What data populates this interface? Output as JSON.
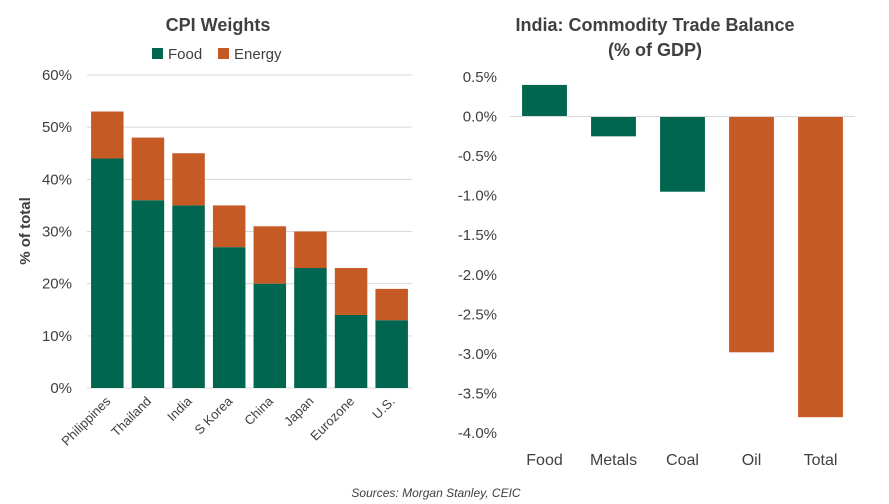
{
  "source": "Sources: Morgan Stanley, CEIC",
  "colors": {
    "food": "#006650",
    "energy": "#C55A24",
    "text": "#404040",
    "grid": "#D9D9D9"
  },
  "chart_data": [
    {
      "type": "bar",
      "stacked": true,
      "title": "CPI Weights",
      "ylabel": "% of total",
      "xlabel": "",
      "ylim": [
        0,
        60
      ],
      "ytick_values": [
        0,
        10,
        20,
        30,
        40,
        50,
        60
      ],
      "ytick_labels": [
        "0%",
        "10%",
        "20%",
        "30%",
        "40%",
        "50%",
        "60%"
      ],
      "grid": true,
      "legend": "top-center",
      "categories": [
        "Philippines",
        "Thailand",
        "India",
        "S Korea",
        "China",
        "Japan",
        "Eurozone",
        "U.S."
      ],
      "series": [
        {
          "name": "Food",
          "color": "#006650",
          "values": [
            44,
            36,
            35,
            27,
            20,
            23,
            14,
            13
          ]
        },
        {
          "name": "Energy",
          "color": "#C55A24",
          "values": [
            9,
            12,
            10,
            8,
            11,
            7,
            9,
            6
          ]
        }
      ]
    },
    {
      "type": "bar",
      "title": "India: Commodity Trade Balance",
      "subtitle": "(% of GDP)",
      "xlabel": "",
      "ylabel": "",
      "ylim": [
        -4.0,
        0.5
      ],
      "ytick_values": [
        0.5,
        0.0,
        -0.5,
        -1.0,
        -1.5,
        -2.0,
        -2.5,
        -3.0,
        -3.5,
        -4.0
      ],
      "ytick_labels": [
        "0.5%",
        "0.0%",
        "-0.5%",
        "-1.0%",
        "-1.5%",
        "-2.0%",
        "-2.5%",
        "-3.0%",
        "-3.5%",
        "-4.0%"
      ],
      "grid": false,
      "categories": [
        "Food",
        "Metals",
        "Coal",
        "Oil",
        "Total"
      ],
      "values": [
        0.4,
        -0.25,
        -0.95,
        -2.98,
        -3.8
      ],
      "bar_colors": [
        "#006650",
        "#006650",
        "#006650",
        "#C55A24",
        "#C55A24"
      ]
    }
  ]
}
